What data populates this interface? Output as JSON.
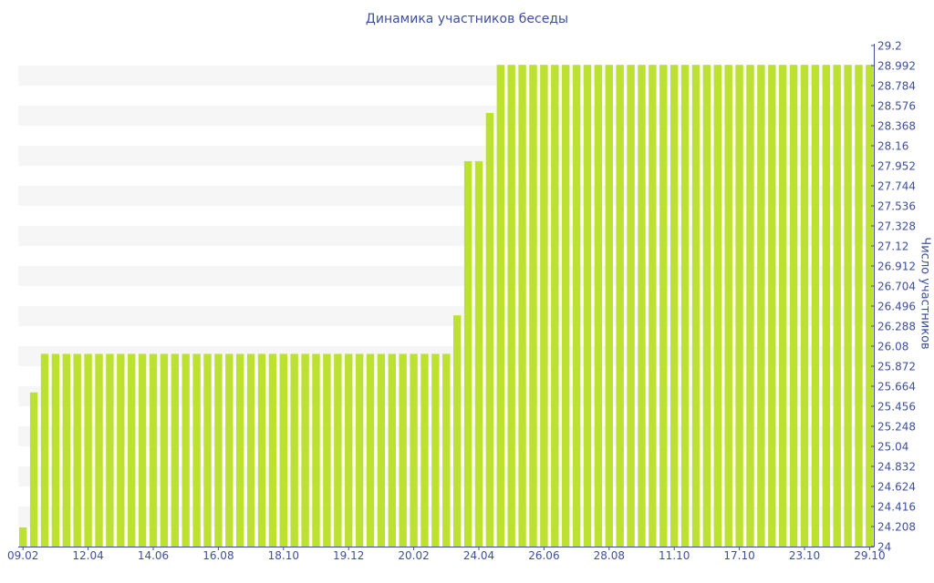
{
  "chart_data": {
    "type": "bar",
    "title": "Динамика участников беседы",
    "xlabel": "",
    "ylabel": "Число участников",
    "ylim": [
      24,
      29.2
    ],
    "y_ticks": [
      "24",
      "24.208",
      "24.416",
      "24.624",
      "24.832",
      "25.04",
      "25.248",
      "25.456",
      "25.664",
      "25.872",
      "26.08",
      "26.288",
      "26.496",
      "26.704",
      "26.912",
      "27.12",
      "27.328",
      "27.536",
      "27.744",
      "27.952",
      "28.16",
      "28.368",
      "28.576",
      "28.784",
      "28.992",
      "29.2"
    ],
    "x_tick_labels": [
      "09.02",
      "12.04",
      "14.06",
      "16.08",
      "18.10",
      "19.12",
      "20.02",
      "24.04",
      "26.06",
      "28.08",
      "11.10",
      "17.10",
      "23.10",
      "29.10"
    ],
    "x_tick_every": 6,
    "values": [
      24.2,
      25.6,
      26,
      26,
      26,
      26,
      26,
      26,
      26,
      26,
      26,
      26,
      26,
      26,
      26,
      26,
      26,
      26,
      26,
      26,
      26,
      26,
      26,
      26,
      26,
      26,
      26,
      26,
      26,
      26,
      26,
      26,
      26,
      26,
      26,
      26,
      26,
      26,
      26,
      26,
      26.4,
      28,
      28,
      28.5,
      29,
      29,
      29,
      29,
      29,
      29,
      29,
      29,
      29,
      29,
      29,
      29,
      29,
      29,
      29,
      29,
      29,
      29,
      29,
      29,
      29,
      29,
      29,
      29,
      29,
      29,
      29,
      29,
      29,
      29,
      29,
      29,
      29,
      29,
      29
    ],
    "colors": {
      "bar": "#bde130",
      "text": "#3e4f9e",
      "band": "#f6f6f6",
      "axis": "#3e4f9e"
    },
    "grid": "alternating-bands",
    "legend": "none"
  }
}
